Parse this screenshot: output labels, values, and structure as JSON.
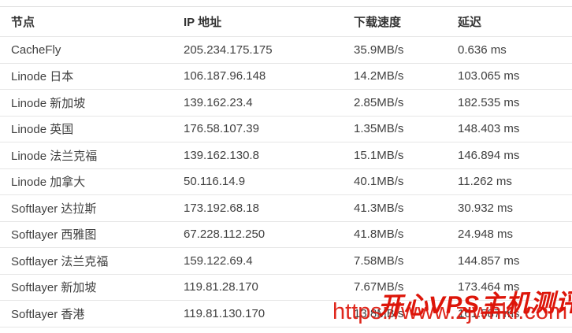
{
  "table": {
    "columns": {
      "node": "节点",
      "ip": "IP 地址",
      "speed": "下载速度",
      "latency": "延迟"
    },
    "rows": [
      {
        "node": "CacheFly",
        "ip": "205.234.175.175",
        "speed": "35.9MB/s",
        "latency": "0.636 ms"
      },
      {
        "node": "Linode 日本",
        "ip": "106.187.96.148",
        "speed": "14.2MB/s",
        "latency": "103.065 ms"
      },
      {
        "node": "Linode 新加坡",
        "ip": "139.162.23.4",
        "speed": "2.85MB/s",
        "latency": "182.535 ms"
      },
      {
        "node": "Linode 英国",
        "ip": "176.58.107.39",
        "speed": "1.35MB/s",
        "latency": "148.403 ms"
      },
      {
        "node": "Linode 法兰克福",
        "ip": "139.162.130.8",
        "speed": "15.1MB/s",
        "latency": "146.894 ms"
      },
      {
        "node": "Linode 加拿大",
        "ip": "50.116.14.9",
        "speed": "40.1MB/s",
        "latency": "11.262 ms"
      },
      {
        "node": "Softlayer 达拉斯",
        "ip": "173.192.68.18",
        "speed": "41.3MB/s",
        "latency": "30.932 ms"
      },
      {
        "node": "Softlayer 西雅图",
        "ip": "67.228.112.250",
        "speed": "41.8MB/s",
        "latency": "24.948 ms"
      },
      {
        "node": "Softlayer 法兰克福",
        "ip": "159.122.69.4",
        "speed": "7.58MB/s",
        "latency": "144.857 ms"
      },
      {
        "node": "Softlayer 新加坡",
        "ip": "119.81.28.170",
        "speed": "7.67MB/s",
        "latency": "173.464 ms"
      },
      {
        "node": "Softlayer 香港",
        "ip": "119.81.130.170",
        "speed": "13.8MB/s",
        "latency": "161.587 ms"
      }
    ]
  },
  "watermark": {
    "title": "开心VPS主机测评",
    "url": "https://www.zjwhkl.com",
    "color": "#dd1509"
  }
}
